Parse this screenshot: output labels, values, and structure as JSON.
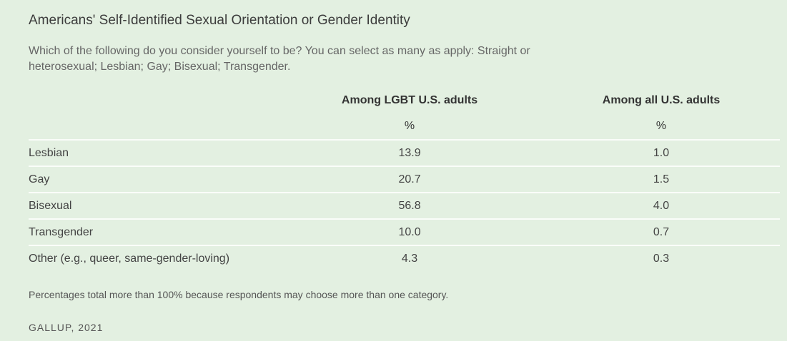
{
  "title": "Americans' Self-Identified Sexual Orientation or Gender Identity",
  "question": "Which of the following do you consider yourself to be? You can select as many as apply: Straight or heterosexual; Lesbian; Gay; Bisexual; Transgender.",
  "footnote": "Percentages total more than 100% because respondents may choose more than one category.",
  "source": "GALLUP, 2021",
  "chart_data": {
    "type": "table",
    "title": "Americans' Self-Identified Sexual Orientation or Gender Identity",
    "columns": [
      "",
      "Among LGBT U.S. adults",
      "Among all U.S. adults"
    ],
    "units": [
      "",
      "%",
      "%"
    ],
    "rows": [
      {
        "label": "Lesbian",
        "values": [
          "13.9",
          "1.0"
        ]
      },
      {
        "label": "Gay",
        "values": [
          "20.7",
          "1.5"
        ]
      },
      {
        "label": "Bisexual",
        "values": [
          "56.8",
          "4.0"
        ]
      },
      {
        "label": "Transgender",
        "values": [
          "10.0",
          "0.7"
        ]
      },
      {
        "label": "Other (e.g., queer, same-gender-loving)",
        "values": [
          "4.3",
          "0.3"
        ]
      }
    ]
  }
}
